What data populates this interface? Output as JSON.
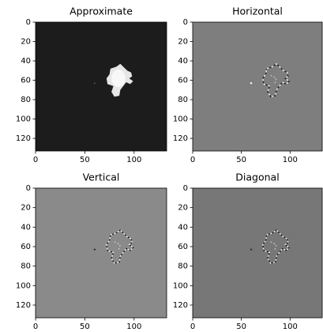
{
  "chart_data": [
    {
      "type": "image",
      "title": "Approximate",
      "xlim": [
        0,
        133
      ],
      "ylim": [
        133,
        0
      ],
      "xticks": [
        0,
        50,
        100
      ],
      "yticks": [
        0,
        20,
        40,
        60,
        80,
        100,
        120
      ]
    },
    {
      "type": "image",
      "title": "Horizontal",
      "xlim": [
        0,
        133
      ],
      "ylim": [
        133,
        0
      ],
      "xticks": [
        0,
        50,
        100
      ],
      "yticks": [
        0,
        20,
        40,
        60,
        80,
        100,
        120
      ]
    },
    {
      "type": "image",
      "title": "Vertical",
      "xlim": [
        0,
        133
      ],
      "ylim": [
        133,
        0
      ],
      "xticks": [
        0,
        50,
        100
      ],
      "yticks": [
        0,
        20,
        40,
        60,
        80,
        100,
        120
      ]
    },
    {
      "type": "image",
      "title": "Diagonal",
      "xlim": [
        0,
        133
      ],
      "ylim": [
        133,
        0
      ],
      "xticks": [
        0,
        50,
        100
      ],
      "yticks": [
        0,
        20,
        40,
        60,
        80,
        100,
        120
      ]
    }
  ]
}
